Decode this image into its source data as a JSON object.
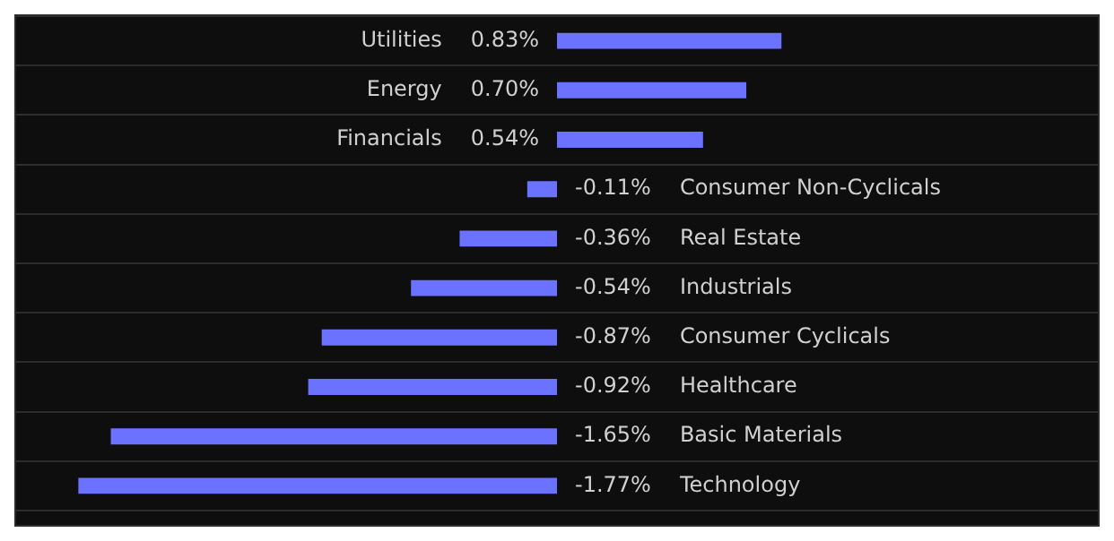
{
  "chart_data": {
    "type": "bar",
    "orientation": "horizontal",
    "categories": [
      "Utilities",
      "Energy",
      "Financials",
      "Consumer Non-Cyclicals",
      "Real Estate",
      "Industrials",
      "Consumer Cyclicals",
      "Healthcare",
      "Basic Materials",
      "Technology"
    ],
    "values": [
      0.83,
      0.7,
      0.54,
      -0.11,
      -0.36,
      -0.54,
      -0.87,
      -0.92,
      -1.65,
      -1.77
    ],
    "value_labels": [
      "0.83%",
      "0.70%",
      "0.54%",
      "-0.11%",
      "-0.36%",
      "-0.54%",
      "-0.87%",
      "-0.92%",
      "-1.65%",
      "-1.77%"
    ],
    "color": "#6b72ff",
    "xlim": [
      -2,
      2
    ],
    "grid": "y",
    "tick_labels": false,
    "legend": false
  }
}
